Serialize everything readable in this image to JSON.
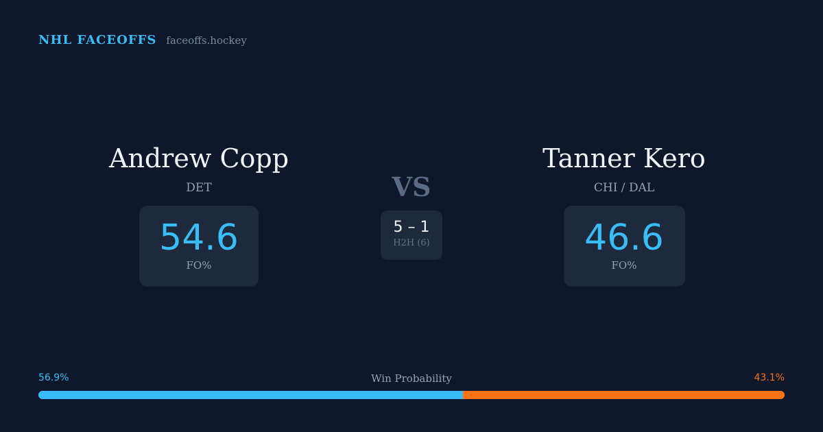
{
  "brand": {
    "name": "NHL FACEOFFS",
    "site": "faceoffs.hockey"
  },
  "players": {
    "left": {
      "name": "Andrew Copp",
      "team": "DET",
      "stat_value": "54.6",
      "stat_label": "FO%"
    },
    "right": {
      "name": "Tanner Kero",
      "team": "CHI / DAL",
      "stat_value": "46.6",
      "stat_label": "FO%"
    }
  },
  "vs_label": "VS",
  "head_to_head": {
    "score": "5 – 1",
    "label": "H2H (6)"
  },
  "win_probability": {
    "title": "Win Probability",
    "left_label": "56.9%",
    "right_label": "43.1%",
    "left_value": 56.9,
    "right_value": 43.1
  },
  "colors": {
    "background": "#0f172a",
    "card": "#1e293b",
    "accent_blue": "#38bdf8",
    "accent_orange": "#f97316"
  }
}
